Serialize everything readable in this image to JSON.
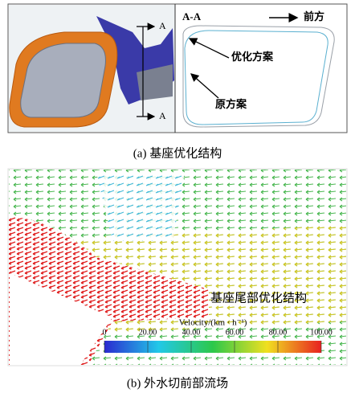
{
  "panel_a": {
    "section_labels": [
      "A",
      "A"
    ],
    "view_label": "A-A",
    "direction_label": "前方",
    "optimized_label": "优化方案",
    "original_label": "原方案",
    "caption": "(a)  基座优化结构"
  },
  "panel_b": {
    "annotation": "基座尾部优化结构",
    "caption": "(b)  外水切前部流场",
    "colorbar": {
      "label": "Velocity/(km · h⁻¹)",
      "lim": [
        0,
        100
      ],
      "ticks": [
        0,
        {
          "value": 20,
          "label": "20.00"
        },
        {
          "value": 40,
          "label": "40.00"
        },
        {
          "value": 60,
          "label": "60.00"
        },
        {
          "value": 80,
          "label": "80.00"
        },
        {
          "value": 100,
          "label": "100.00"
        }
      ],
      "colors": [
        "#2a2ad0",
        "#22c8e8",
        "#2cc84a",
        "#f0e020",
        "#e82020"
      ]
    }
  }
}
